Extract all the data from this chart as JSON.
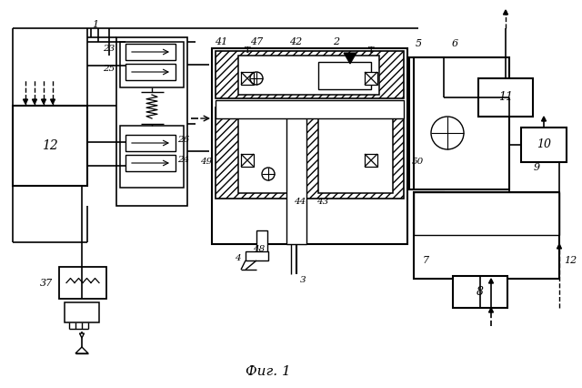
{
  "bg_color": "#ffffff",
  "title": "Фиг. 1",
  "title_fontsize": 11,
  "fig_width": 6.4,
  "fig_height": 4.26,
  "dpi": 100
}
